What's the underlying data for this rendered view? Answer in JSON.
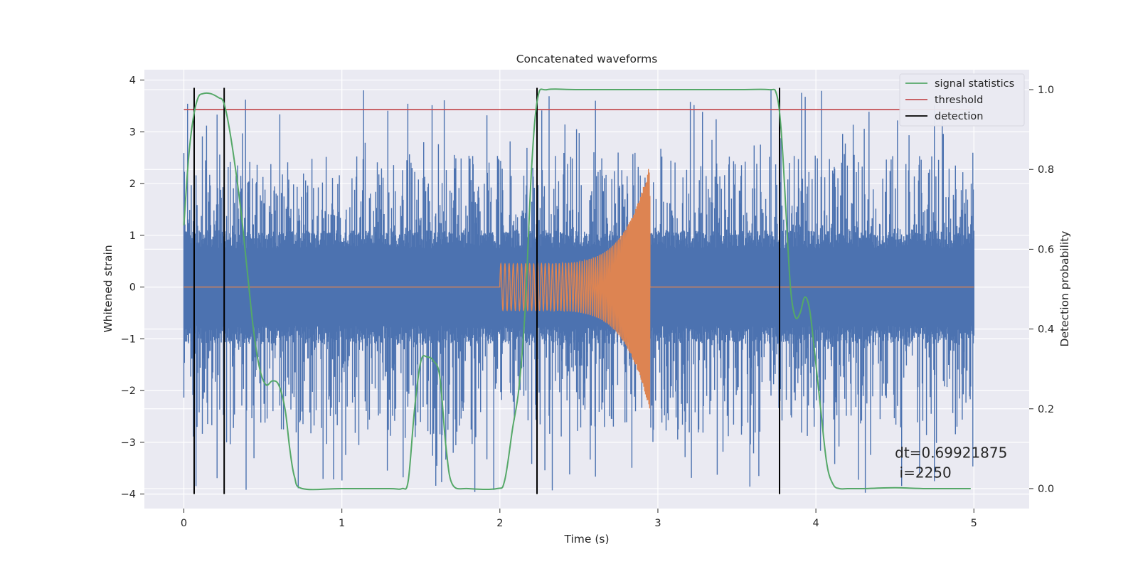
{
  "chart_data": {
    "type": "line",
    "title": "Concatenated waveforms",
    "xlabel": "Time (s)",
    "ylabel": "Whitened strain",
    "y2label": "Detection probability",
    "xlim": [
      -0.25,
      5.35
    ],
    "ylim": [
      -4.28,
      4.2
    ],
    "y2lim": [
      -0.05,
      1.05
    ],
    "x_ticks": [
      0,
      1,
      2,
      3,
      4,
      5
    ],
    "y_ticks": [
      -4,
      -3,
      -2,
      -1,
      0,
      1,
      2,
      3,
      4
    ],
    "y2_ticks": [
      0.0,
      0.2,
      0.4,
      0.6,
      0.8,
      1.0
    ],
    "grid": true,
    "legend_position": "top-right",
    "legend": [
      "signal statistics",
      "threshold",
      "detection"
    ],
    "colors": {
      "strain": "#4c72b0",
      "template": "#dd8452",
      "signal_statistics": "#55a868",
      "threshold": "#c44e52",
      "detection": "#000000",
      "axes_bg": "#eaeaf2",
      "grid": "#ffffff"
    },
    "series": [
      {
        "name": "signal statistics",
        "axis": "right",
        "x": [
          0.0,
          0.03,
          0.06,
          0.09,
          0.12,
          0.17,
          0.22,
          0.25,
          0.28,
          0.32,
          0.36,
          0.4,
          0.44,
          0.48,
          0.52,
          0.56,
          0.6,
          0.64,
          0.67,
          0.7,
          0.75,
          1.0,
          1.3,
          1.38,
          1.42,
          1.46,
          1.5,
          1.54,
          1.58,
          1.62,
          1.66,
          1.7,
          1.8,
          1.98,
          2.03,
          2.08,
          2.12,
          2.16,
          2.2,
          2.24,
          2.3,
          2.5,
          3.0,
          3.5,
          3.7,
          3.75,
          3.78,
          3.81,
          3.84,
          3.87,
          3.9,
          3.93,
          3.96,
          3.99,
          4.03,
          4.07,
          4.11,
          4.15,
          4.2,
          4.3,
          4.5,
          4.7,
          4.98
        ],
        "y": [
          0.66,
          0.83,
          0.93,
          0.98,
          0.99,
          0.99,
          0.98,
          0.97,
          0.92,
          0.82,
          0.7,
          0.55,
          0.4,
          0.3,
          0.26,
          0.27,
          0.26,
          0.2,
          0.1,
          0.03,
          0.0,
          0.0,
          0.0,
          0.0,
          0.02,
          0.2,
          0.32,
          0.33,
          0.32,
          0.28,
          0.1,
          0.01,
          0.0,
          0.0,
          0.02,
          0.15,
          0.25,
          0.45,
          0.8,
          0.98,
          1.0,
          1.0,
          1.0,
          1.0,
          1.0,
          0.99,
          0.9,
          0.7,
          0.5,
          0.43,
          0.44,
          0.48,
          0.45,
          0.35,
          0.2,
          0.06,
          0.01,
          0.0,
          0.0,
          0.0,
          0.002,
          0.0,
          0.0
        ]
      },
      {
        "name": "threshold",
        "axis": "right",
        "x": [
          0.0,
          5.0
        ],
        "y": [
          0.95,
          0.95
        ]
      },
      {
        "name": "detection",
        "axis": "left",
        "x": [
          0.065,
          0.255,
          2.235,
          3.77
        ],
        "y_range": [
          -4.0,
          3.85
        ]
      },
      {
        "name": "",
        "axis": "left",
        "description": "whitened detector strain (noise)",
        "x_range": [
          0.0,
          5.0
        ],
        "amplitude_core": 1.0,
        "amplitude_peak_max": 3.85,
        "amplitude_trough_min": -4.0
      },
      {
        "name": "",
        "axis": "left",
        "description": "injected chirp template",
        "x_range": [
          2.0,
          2.95
        ],
        "amplitude_start": 0.45,
        "amplitude_end": 2.4,
        "x_flat_before": 0.0,
        "x_flat_after": 5.0
      }
    ],
    "annotations": [
      {
        "text": "dt=0.69921875",
        "x": 4.5,
        "y": -3.3
      },
      {
        "text": " i=2250",
        "x": 4.5,
        "y": -3.68
      }
    ]
  }
}
